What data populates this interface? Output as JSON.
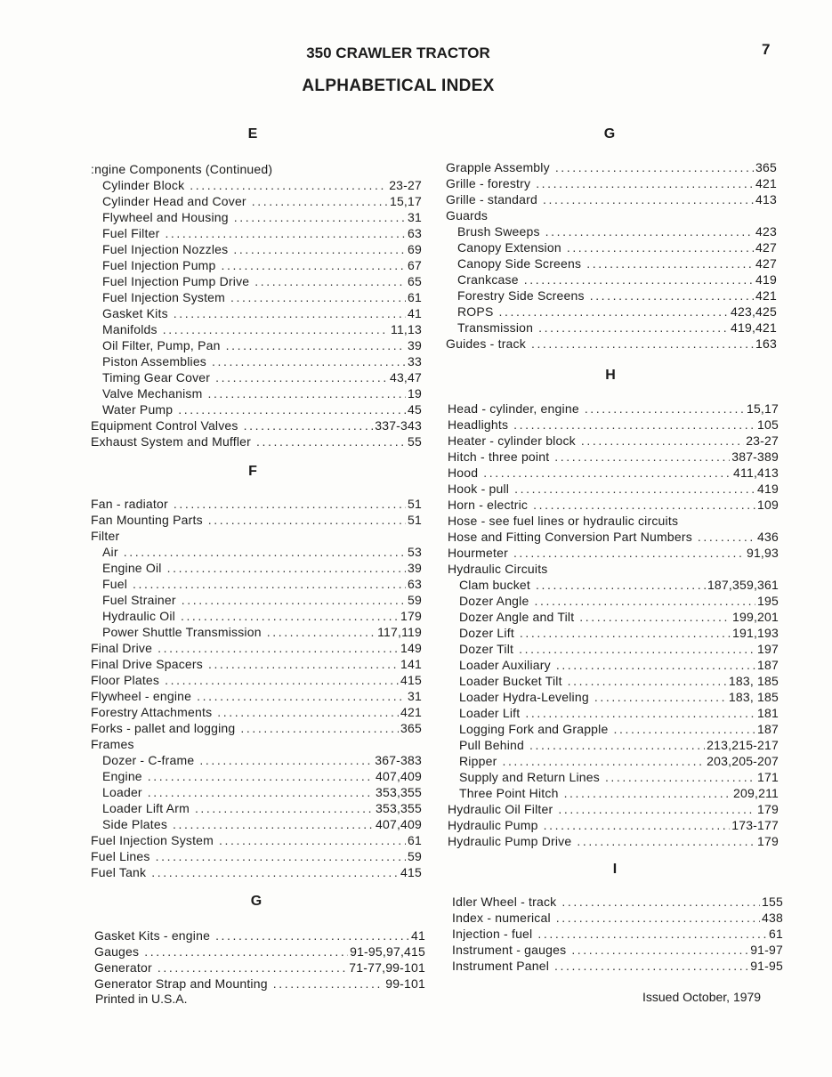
{
  "header": {
    "title": "350 CRAWLER TRACTOR",
    "subtitle": "ALPHABETICAL INDEX",
    "page_number": "7"
  },
  "sections": [
    {
      "letter": "E",
      "entries": [
        {
          "label": ":ngine Components (Continued)",
          "page": "",
          "indent": false
        },
        {
          "label": "Cylinder Block",
          "page": "23-27",
          "indent": true
        },
        {
          "label": "Cylinder Head and Cover",
          "page": "15,17",
          "indent": true
        },
        {
          "label": "Flywheel and Housing",
          "page": "31",
          "indent": true
        },
        {
          "label": "Fuel Filter",
          "page": "63",
          "indent": true
        },
        {
          "label": "Fuel Injection Nozzles",
          "page": "69",
          "indent": true
        },
        {
          "label": "Fuel Injection Pump",
          "page": "67",
          "indent": true
        },
        {
          "label": "Fuel Injection Pump Drive",
          "page": "65",
          "indent": true
        },
        {
          "label": "Fuel Injection System",
          "page": "61",
          "indent": true
        },
        {
          "label": "Gasket Kits",
          "page": "41",
          "indent": true
        },
        {
          "label": "Manifolds",
          "page": "11,13",
          "indent": true
        },
        {
          "label": "Oil Filter, Pump, Pan",
          "page": "39",
          "indent": true
        },
        {
          "label": "Piston Assemblies",
          "page": "33",
          "indent": true
        },
        {
          "label": "Timing Gear Cover",
          "page": "43,47",
          "indent": true
        },
        {
          "label": "Valve Mechanism",
          "page": "19",
          "indent": true
        },
        {
          "label": "Water Pump",
          "page": "45",
          "indent": true
        },
        {
          "label": "Equipment Control Valves",
          "page": "337-343",
          "indent": false
        },
        {
          "label": "Exhaust System and Muffler",
          "page": "55",
          "indent": false
        }
      ]
    },
    {
      "letter": "F",
      "entries": [
        {
          "label": "Fan - radiator",
          "page": "51",
          "indent": false
        },
        {
          "label": "Fan Mounting Parts",
          "page": "51",
          "indent": false
        },
        {
          "label": "Filter",
          "page": "",
          "indent": false
        },
        {
          "label": "Air",
          "page": "53",
          "indent": true
        },
        {
          "label": "Engine Oil",
          "page": "39",
          "indent": true
        },
        {
          "label": "Fuel",
          "page": "63",
          "indent": true
        },
        {
          "label": "Fuel Strainer",
          "page": "59",
          "indent": true
        },
        {
          "label": "Hydraulic Oil",
          "page": "179",
          "indent": true
        },
        {
          "label": "Power Shuttle Transmission",
          "page": "117,119",
          "indent": true
        },
        {
          "label": "Final Drive",
          "page": "149",
          "indent": false
        },
        {
          "label": "Final Drive Spacers",
          "page": "141",
          "indent": false
        },
        {
          "label": "Floor Plates",
          "page": "415",
          "indent": false
        },
        {
          "label": "Flywheel - engine",
          "page": "31",
          "indent": false
        },
        {
          "label": "Forestry Attachments",
          "page": "421",
          "indent": false
        },
        {
          "label": "Forks - pallet and logging",
          "page": "365",
          "indent": false
        },
        {
          "label": "Frames",
          "page": "",
          "indent": false
        },
        {
          "label": "Dozer - C-frame",
          "page": "367-383",
          "indent": true
        },
        {
          "label": "Engine",
          "page": "407,409",
          "indent": true
        },
        {
          "label": "Loader",
          "page": "353,355",
          "indent": true
        },
        {
          "label": "Loader Lift Arm",
          "page": "353,355",
          "indent": true
        },
        {
          "label": "Side Plates",
          "page": "407,409",
          "indent": true
        },
        {
          "label": "Fuel Injection System",
          "page": "61",
          "indent": false
        },
        {
          "label": "Fuel Lines",
          "page": "59",
          "indent": false
        },
        {
          "label": "Fuel Tank",
          "page": "415",
          "indent": false
        }
      ]
    },
    {
      "letter": "G",
      "entries": [
        {
          "label": "Gasket Kits - engine",
          "page": "41",
          "indent": false
        },
        {
          "label": "Gauges",
          "page": "91-95,97,415",
          "indent": false
        },
        {
          "label": "Generator",
          "page": "71-77,99-101",
          "indent": false
        },
        {
          "label": "Generator Strap and Mounting",
          "page": "99-101",
          "indent": false
        }
      ]
    },
    {
      "letter": "G",
      "entries": [
        {
          "label": "Grapple Assembly",
          "page": "365",
          "indent": false
        },
        {
          "label": "Grille - forestry",
          "page": "421",
          "indent": false
        },
        {
          "label": "Grille - standard",
          "page": "413",
          "indent": false
        },
        {
          "label": "Guards",
          "page": "",
          "indent": false
        },
        {
          "label": "Brush Sweeps",
          "page": "423",
          "indent": true
        },
        {
          "label": "Canopy Extension",
          "page": "427",
          "indent": true
        },
        {
          "label": "Canopy Side Screens",
          "page": "427",
          "indent": true
        },
        {
          "label": "Crankcase",
          "page": "419",
          "indent": true
        },
        {
          "label": "Forestry Side Screens",
          "page": "421",
          "indent": true
        },
        {
          "label": "ROPS",
          "page": "423,425",
          "indent": true
        },
        {
          "label": "Transmission",
          "page": "419,421",
          "indent": true
        },
        {
          "label": "Guides - track",
          "page": "163",
          "indent": false
        }
      ]
    },
    {
      "letter": "H",
      "entries": [
        {
          "label": "Head - cylinder, engine",
          "page": "15,17",
          "indent": false
        },
        {
          "label": "Headlights",
          "page": "105",
          "indent": false
        },
        {
          "label": "Heater - cylinder block",
          "page": "23-27",
          "indent": false
        },
        {
          "label": "Hitch - three point",
          "page": "387-389",
          "indent": false
        },
        {
          "label": "Hood",
          "page": "411,413",
          "indent": false
        },
        {
          "label": "Hook - pull",
          "page": "419",
          "indent": false
        },
        {
          "label": "Horn - electric",
          "page": "109",
          "indent": false
        },
        {
          "label": "Hose - see fuel lines or hydraulic circuits",
          "page": "",
          "indent": false
        },
        {
          "label": "Hose and Fitting Conversion Part Numbers",
          "page": "436",
          "indent": false
        },
        {
          "label": "Hourmeter",
          "page": "91,93",
          "indent": false
        },
        {
          "label": "Hydraulic Circuits",
          "page": "",
          "indent": false
        },
        {
          "label": "Clam bucket",
          "page": "187,359,361",
          "indent": true
        },
        {
          "label": "Dozer Angle",
          "page": "195",
          "indent": true
        },
        {
          "label": "Dozer Angle and Tilt",
          "page": "199,201",
          "indent": true
        },
        {
          "label": "Dozer Lift",
          "page": "191,193",
          "indent": true
        },
        {
          "label": "Dozer Tilt",
          "page": "197",
          "indent": true
        },
        {
          "label": "Loader Auxiliary",
          "page": "187",
          "indent": true
        },
        {
          "label": "Loader Bucket Tilt",
          "page": "183, 185",
          "indent": true
        },
        {
          "label": "Loader Hydra-Leveling",
          "page": "183, 185",
          "indent": true
        },
        {
          "label": "Loader Lift",
          "page": "181",
          "indent": true
        },
        {
          "label": "Logging Fork and Grapple",
          "page": "187",
          "indent": true
        },
        {
          "label": "Pull Behind",
          "page": "213,215-217",
          "indent": true
        },
        {
          "label": "Ripper",
          "page": "203,205-207",
          "indent": true
        },
        {
          "label": "Supply and Return Lines",
          "page": "171",
          "indent": true
        },
        {
          "label": "Three Point Hitch",
          "page": "209,211",
          "indent": true
        },
        {
          "label": "Hydraulic Oil Filter",
          "page": "179",
          "indent": false
        },
        {
          "label": "Hydraulic Pump",
          "page": "173-177",
          "indent": false
        },
        {
          "label": "Hydraulic Pump Drive",
          "page": "179",
          "indent": false
        }
      ]
    },
    {
      "letter": "I",
      "entries": [
        {
          "label": "Idler Wheel - track",
          "page": "155",
          "indent": false
        },
        {
          "label": "Index - numerical",
          "page": "438",
          "indent": false
        },
        {
          "label": "Injection - fuel",
          "page": "61",
          "indent": false
        },
        {
          "label": "Instrument - gauges",
          "page": "91-97",
          "indent": false
        },
        {
          "label": "Instrument Panel",
          "page": "91-95",
          "indent": false
        }
      ]
    }
  ],
  "footer": {
    "printed": "Printed in U.S.A.",
    "issued": "Issued October, 1979"
  }
}
